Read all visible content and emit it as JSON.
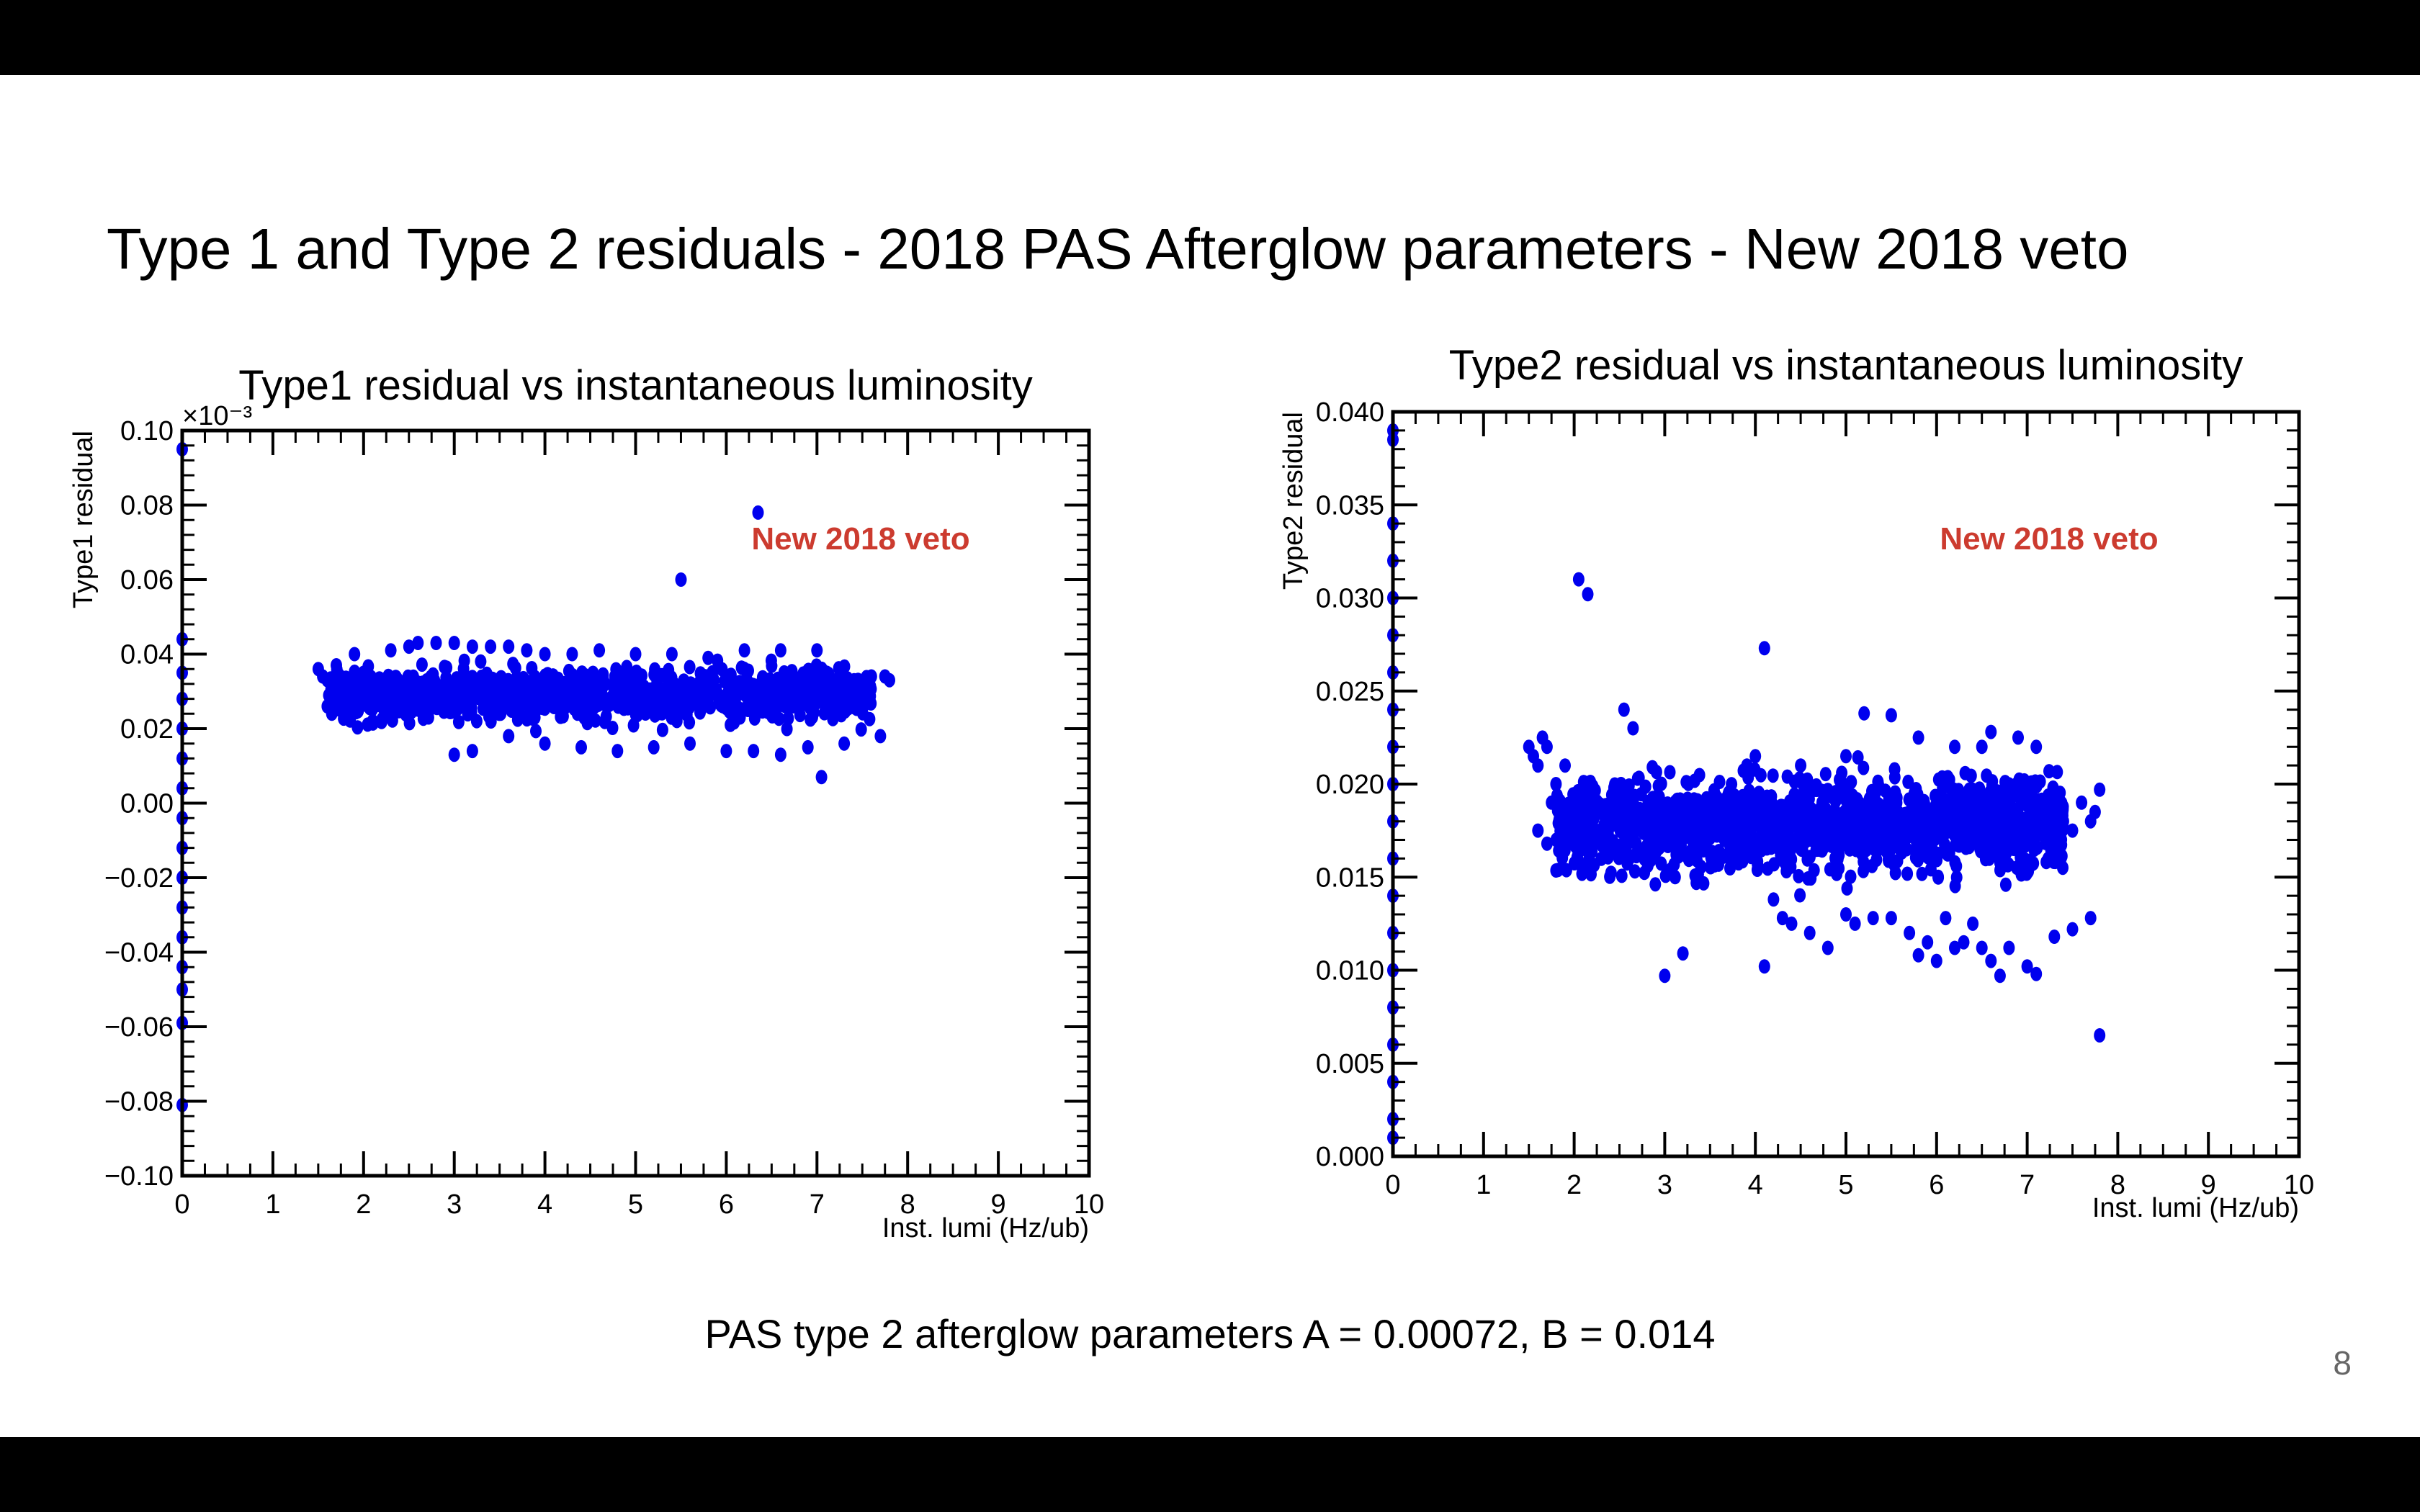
{
  "slide": {
    "title": "Type 1 and Type 2 residuals - 2018 PAS Afterglow parameters - New 2018 veto",
    "caption": "PAS type 2 afterglow parameters A = 0.00072, B = 0.014",
    "page_number": "8"
  },
  "colors": {
    "marker": "#0000ee",
    "annotation": "#cc3b2f",
    "frame": "#000000"
  },
  "chart_data": [
    {
      "type": "scatter",
      "title": "Type1 residual  vs instantaneous luminosity",
      "xlabel": "Inst. lumi (Hz/ub)",
      "ylabel": "Type1 residual",
      "y_exponent": "×10⁻³",
      "xlim": [
        0,
        10
      ],
      "ylim": [
        -0.1,
        0.1
      ],
      "x_ticks": [
        0,
        1,
        2,
        3,
        4,
        5,
        6,
        7,
        8,
        9,
        10
      ],
      "x_tick_labels": [
        "0",
        "1",
        "2",
        "3",
        "4",
        "5",
        "6",
        "7",
        "8",
        "9",
        "10"
      ],
      "y_ticks": [
        -0.1,
        -0.08,
        -0.06,
        -0.04,
        -0.02,
        0,
        0.02,
        0.04,
        0.06,
        0.08,
        0.1
      ],
      "y_tick_labels": [
        "−0.10",
        "−0.08",
        "−0.06",
        "−0.04",
        "−0.02",
        "0.00",
        "0.02",
        "0.04",
        "0.06",
        "0.08",
        "0.10"
      ],
      "annotation": "New 2018 veto",
      "grid": false,
      "legend": "none",
      "series": [
        {
          "points": [
            [
              0,
              0.095
            ],
            [
              0,
              0.044
            ],
            [
              0,
              0.035
            ],
            [
              0,
              0.028
            ],
            [
              0,
              0.02
            ],
            [
              0,
              0.012
            ],
            [
              0,
              0.004
            ],
            [
              0,
              -0.004
            ],
            [
              0,
              -0.012
            ],
            [
              0,
              -0.02
            ],
            [
              0,
              -0.028
            ],
            [
              0,
              -0.036
            ],
            [
              0,
              -0.044
            ],
            [
              0,
              -0.05
            ],
            [
              0,
              -0.059
            ],
            [
              0,
              -0.081
            ],
            [
              1.5,
              0.036
            ],
            [
              1.55,
              0.034
            ],
            [
              1.6,
              0.033
            ],
            [
              1.6,
              0.026
            ],
            [
              1.65,
              0.024
            ],
            [
              1.7,
              0.037
            ],
            [
              1.8,
              0.03
            ],
            [
              1.9,
              0.04
            ],
            [
              2.0,
              0.035
            ],
            [
              2.1,
              0.022
            ],
            [
              2.3,
              0.041
            ],
            [
              2.5,
              0.042
            ],
            [
              2.6,
              0.043
            ],
            [
              2.8,
              0.043
            ],
            [
              3.0,
              0.043
            ],
            [
              3.2,
              0.042
            ],
            [
              3.4,
              0.042
            ],
            [
              3.6,
              0.042
            ],
            [
              3.8,
              0.041
            ],
            [
              4.0,
              0.04
            ],
            [
              4.3,
              0.04
            ],
            [
              4.6,
              0.041
            ],
            [
              5.0,
              0.04
            ],
            [
              5.4,
              0.04
            ],
            [
              5.8,
              0.039
            ],
            [
              6.2,
              0.041
            ],
            [
              6.6,
              0.041
            ],
            [
              7.0,
              0.041
            ],
            [
              3.0,
              0.013
            ],
            [
              3.2,
              0.014
            ],
            [
              3.6,
              0.018
            ],
            [
              4.0,
              0.016
            ],
            [
              4.4,
              0.015
            ],
            [
              4.8,
              0.014
            ],
            [
              5.2,
              0.015
            ],
            [
              5.6,
              0.016
            ],
            [
              6.0,
              0.014
            ],
            [
              6.3,
              0.014
            ],
            [
              6.6,
              0.013
            ],
            [
              6.9,
              0.015
            ],
            [
              7.05,
              0.007
            ],
            [
              7.3,
              0.016
            ],
            [
              7.7,
              0.018
            ],
            [
              5.5,
              0.06
            ],
            [
              6.35,
              0.078
            ],
            [
              7.6,
              0.034
            ],
            [
              7.75,
              0.034
            ],
            [
              7.8,
              0.033
            ]
          ],
          "band": {
            "x_range": [
              1.6,
              7.6
            ],
            "y_center": 0.029,
            "y_half_width": 0.0065,
            "count": 1100,
            "seed": 7
          }
        }
      ]
    },
    {
      "type": "scatter",
      "title": "Type2 residual  vs instantaneous luminosity",
      "xlabel": "Inst. lumi (Hz/ub)",
      "ylabel": "Type2 residual",
      "xlim": [
        0,
        10
      ],
      "ylim": [
        0,
        0.04
      ],
      "x_ticks": [
        0,
        1,
        2,
        3,
        4,
        5,
        6,
        7,
        8,
        9,
        10
      ],
      "x_tick_labels": [
        "0",
        "1",
        "2",
        "3",
        "4",
        "5",
        "6",
        "7",
        "8",
        "9",
        "10"
      ],
      "y_ticks": [
        0,
        0.005,
        0.01,
        0.015,
        0.02,
        0.025,
        0.03,
        0.035,
        0.04
      ],
      "y_tick_labels": [
        "0.000",
        "0.005",
        "0.010",
        "0.015",
        "0.020",
        "0.025",
        "0.030",
        "0.035",
        "0.040"
      ],
      "annotation": "New 2018 veto",
      "grid": false,
      "legend": "none",
      "series": [
        {
          "points": [
            [
              0,
              0.039
            ],
            [
              0,
              0.0385
            ],
            [
              0,
              0.034
            ],
            [
              0,
              0.032
            ],
            [
              0,
              0.03
            ],
            [
              0,
              0.028
            ],
            [
              0,
              0.026
            ],
            [
              0,
              0.024
            ],
            [
              0,
              0.022
            ],
            [
              0,
              0.02
            ],
            [
              0,
              0.018
            ],
            [
              0,
              0.016
            ],
            [
              0,
              0.014
            ],
            [
              0,
              0.012
            ],
            [
              0,
              0.01
            ],
            [
              0,
              0.008
            ],
            [
              0,
              0.006
            ],
            [
              0,
              0.004
            ],
            [
              0,
              0.002
            ],
            [
              0,
              0.001
            ],
            [
              1.5,
              0.022
            ],
            [
              1.55,
              0.0215
            ],
            [
              1.6,
              0.021
            ],
            [
              1.65,
              0.0225
            ],
            [
              1.7,
              0.022
            ],
            [
              1.75,
              0.019
            ],
            [
              1.8,
              0.02
            ],
            [
              1.9,
              0.021
            ],
            [
              1.6,
              0.0175
            ],
            [
              1.7,
              0.0168
            ],
            [
              2.05,
              0.031
            ],
            [
              2.15,
              0.0302
            ],
            [
              2.55,
              0.024
            ],
            [
              2.65,
              0.023
            ],
            [
              4.1,
              0.0273
            ],
            [
              4.0,
              0.0215
            ],
            [
              4.5,
              0.021
            ],
            [
              5.0,
              0.0215
            ],
            [
              5.2,
              0.0238
            ],
            [
              5.5,
              0.0237
            ],
            [
              5.8,
              0.0225
            ],
            [
              6.2,
              0.022
            ],
            [
              6.5,
              0.022
            ],
            [
              6.6,
              0.0228
            ],
            [
              6.9,
              0.0225
            ],
            [
              7.1,
              0.022
            ],
            [
              3.0,
              0.0097
            ],
            [
              3.2,
              0.0109
            ],
            [
              4.1,
              0.0102
            ],
            [
              4.2,
              0.0138
            ],
            [
              4.3,
              0.0128
            ],
            [
              4.4,
              0.0125
            ],
            [
              4.6,
              0.012
            ],
            [
              4.8,
              0.0112
            ],
            [
              5.0,
              0.013
            ],
            [
              5.1,
              0.0125
            ],
            [
              5.3,
              0.0128
            ],
            [
              5.5,
              0.0128
            ],
            [
              5.7,
              0.012
            ],
            [
              5.8,
              0.0108
            ],
            [
              5.9,
              0.0115
            ],
            [
              6.0,
              0.0105
            ],
            [
              6.1,
              0.0128
            ],
            [
              6.2,
              0.0112
            ],
            [
              6.3,
              0.0115
            ],
            [
              6.4,
              0.0125
            ],
            [
              6.5,
              0.0112
            ],
            [
              6.6,
              0.0105
            ],
            [
              6.7,
              0.0097
            ],
            [
              6.8,
              0.0112
            ],
            [
              7.0,
              0.0102
            ],
            [
              7.1,
              0.0098
            ],
            [
              7.3,
              0.0118
            ],
            [
              7.5,
              0.0122
            ],
            [
              7.7,
              0.0128
            ],
            [
              7.8,
              0.0065
            ],
            [
              7.4,
              0.018
            ],
            [
              7.5,
              0.0175
            ],
            [
              7.6,
              0.019
            ],
            [
              7.7,
              0.018
            ],
            [
              7.8,
              0.0197
            ],
            [
              7.75,
              0.0185
            ]
          ],
          "band": {
            "x_range": [
              1.8,
              7.4
            ],
            "y_center": 0.0178,
            "y_half_width": 0.0024,
            "count": 1500,
            "seed": 11
          }
        }
      ]
    }
  ]
}
